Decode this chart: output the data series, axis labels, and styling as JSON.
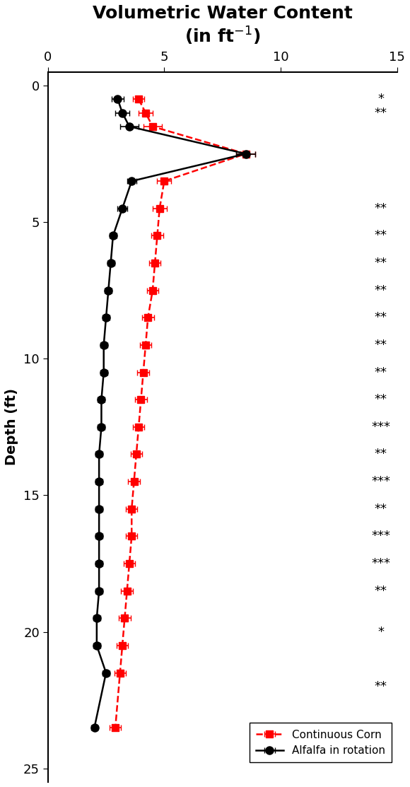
{
  "ylabel": "Depth (ft)",
  "xlim": [
    0,
    15
  ],
  "ylim": [
    25.5,
    -0.5
  ],
  "xticks": [
    0,
    5,
    10,
    15
  ],
  "yticks": [
    0,
    5,
    10,
    15,
    20,
    25
  ],
  "corn_depth": [
    0.5,
    1.0,
    1.5,
    2.5,
    3.5,
    4.5,
    5.5,
    6.5,
    7.5,
    8.5,
    9.5,
    10.5,
    11.5,
    12.5,
    13.5,
    14.5,
    15.5,
    16.5,
    17.5,
    18.5,
    19.5,
    20.5,
    21.5,
    23.5
  ],
  "corn_x": [
    3.9,
    4.2,
    4.5,
    8.5,
    5.0,
    4.8,
    4.7,
    4.6,
    4.5,
    4.3,
    4.2,
    4.1,
    4.0,
    3.9,
    3.8,
    3.7,
    3.6,
    3.6,
    3.5,
    3.4,
    3.3,
    3.2,
    3.1,
    2.9
  ],
  "corn_xerr": [
    0.25,
    0.3,
    0.4,
    0.4,
    0.3,
    0.3,
    0.25,
    0.25,
    0.25,
    0.25,
    0.25,
    0.25,
    0.25,
    0.25,
    0.25,
    0.25,
    0.25,
    0.25,
    0.25,
    0.25,
    0.25,
    0.25,
    0.25,
    0.25
  ],
  "alf_depth": [
    0.5,
    1.0,
    1.5,
    2.5,
    3.5,
    4.5,
    5.5,
    6.5,
    7.5,
    8.5,
    9.5,
    10.5,
    11.5,
    12.5,
    13.5,
    14.5,
    15.5,
    16.5,
    17.5,
    18.5,
    19.5,
    20.5,
    21.5,
    23.5
  ],
  "alf_x": [
    3.0,
    3.2,
    3.5,
    8.5,
    3.6,
    3.2,
    2.8,
    2.7,
    2.6,
    2.5,
    2.4,
    2.4,
    2.3,
    2.3,
    2.2,
    2.2,
    2.2,
    2.2,
    2.2,
    2.2,
    2.1,
    2.1,
    2.5,
    2.0
  ],
  "alf_xerr": [
    0.25,
    0.3,
    0.4,
    0.4,
    0.2,
    0.2,
    0.15,
    0.15,
    0.15,
    0.15,
    0.15,
    0.15,
    0.15,
    0.15,
    0.15,
    0.15,
    0.15,
    0.15,
    0.15,
    0.15,
    0.15,
    0.15,
    0.15,
    0.15
  ],
  "significance": [
    [
      0.5,
      "*"
    ],
    [
      1.0,
      "**"
    ],
    [
      4.5,
      "**"
    ],
    [
      5.5,
      "**"
    ],
    [
      6.5,
      "**"
    ],
    [
      7.5,
      "**"
    ],
    [
      8.5,
      "**"
    ],
    [
      9.5,
      "**"
    ],
    [
      10.5,
      "**"
    ],
    [
      11.5,
      "**"
    ],
    [
      12.5,
      "***"
    ],
    [
      13.5,
      "**"
    ],
    [
      14.5,
      "***"
    ],
    [
      15.5,
      "**"
    ],
    [
      16.5,
      "***"
    ],
    [
      17.5,
      "***"
    ],
    [
      18.5,
      "**"
    ],
    [
      20.0,
      "*"
    ],
    [
      22.0,
      "**"
    ]
  ],
  "corn_color": "#FF0000",
  "alf_color": "#000000",
  "title_fontsize": 18,
  "label_fontsize": 14,
  "tick_fontsize": 13,
  "sig_fontsize": 13,
  "fig_width": 5.8,
  "fig_height": 11.13
}
